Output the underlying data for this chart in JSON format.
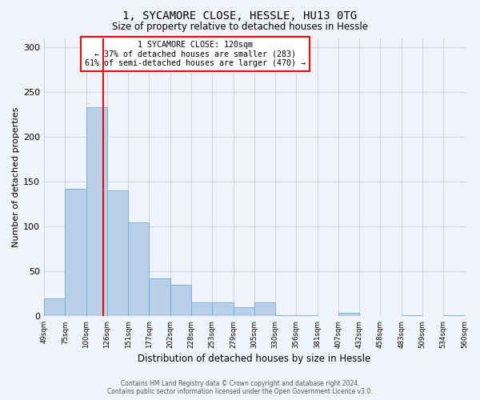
{
  "title": "1, SYCAMORE CLOSE, HESSLE, HU13 0TG",
  "subtitle": "Size of property relative to detached houses in Hessle",
  "xlabel": "Distribution of detached houses by size in Hessle",
  "ylabel": "Number of detached properties",
  "bin_labels": [
    "49sqm",
    "75sqm",
    "100sqm",
    "126sqm",
    "151sqm",
    "177sqm",
    "202sqm",
    "228sqm",
    "253sqm",
    "279sqm",
    "305sqm",
    "330sqm",
    "356sqm",
    "381sqm",
    "407sqm",
    "432sqm",
    "458sqm",
    "483sqm",
    "509sqm",
    "534sqm",
    "560sqm"
  ],
  "counts": [
    20,
    142,
    233,
    140,
    105,
    42,
    35,
    15,
    15,
    10,
    15,
    1,
    1,
    0,
    4,
    0,
    0,
    1,
    0,
    1
  ],
  "bar_color": "#b8d0ea",
  "bar_edge_color": "#6aaed6",
  "vline_bin_index": 2.8,
  "vline_color": "red",
  "ylim": [
    0,
    310
  ],
  "yticks": [
    0,
    50,
    100,
    150,
    200,
    250,
    300
  ],
  "annotation_text": "1 SYCAMORE CLOSE: 120sqm\n← 37% of detached houses are smaller (283)\n61% of semi-detached houses are larger (470) →",
  "footer_line1": "Contains HM Land Registry data © Crown copyright and database right 2024.",
  "footer_line2": "Contains public sector information licensed under the Open Government Licence v3.0.",
  "bg_color": "#f0f4fa",
  "grid_color": "#c8d4e8",
  "title_fontsize": 10,
  "subtitle_fontsize": 8.5
}
